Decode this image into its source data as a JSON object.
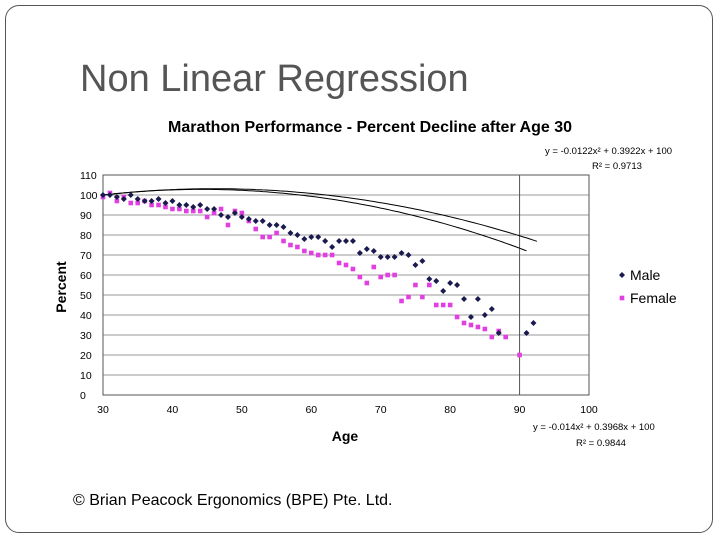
{
  "slide": {
    "title": "Non Linear Regression",
    "copyright": "© Brian Peacock Ergonomics (BPE) Pte. Ltd."
  },
  "chart_data": {
    "type": "scatter",
    "title": "Marathon Performance - Percent Decline after Age 30",
    "xlabel": "Age",
    "ylabel": "Percent",
    "xlim": [
      30,
      100
    ],
    "ylim": [
      0,
      110
    ],
    "x_ticks": [
      30,
      40,
      50,
      60,
      70,
      80,
      90,
      100
    ],
    "y_ticks": [
      0,
      10,
      20,
      30,
      40,
      50,
      60,
      70,
      80,
      90,
      100,
      110
    ],
    "grid": "horizontal",
    "legend_position": "right",
    "series": [
      {
        "name": "Male",
        "color": "#1a1a4e",
        "marker": "diamond",
        "trendline": {
          "equation": "y = -0.0122x² + 0.3922x + 100",
          "r2": "R² = 0.9713",
          "a": -0.0122,
          "b": 0.3922,
          "c": 100
        },
        "points": [
          [
            30,
            100
          ],
          [
            31,
            100
          ],
          [
            32,
            99
          ],
          [
            33,
            98
          ],
          [
            34,
            100
          ],
          [
            35,
            98
          ],
          [
            36,
            97
          ],
          [
            37,
            97
          ],
          [
            38,
            98
          ],
          [
            39,
            96
          ],
          [
            40,
            97
          ],
          [
            41,
            95
          ],
          [
            42,
            95
          ],
          [
            43,
            94
          ],
          [
            44,
            95
          ],
          [
            45,
            93
          ],
          [
            46,
            93
          ],
          [
            47,
            90
          ],
          [
            48,
            89
          ],
          [
            49,
            91
          ],
          [
            50,
            89
          ],
          [
            51,
            88
          ],
          [
            52,
            87
          ],
          [
            53,
            87
          ],
          [
            54,
            85
          ],
          [
            55,
            85
          ],
          [
            56,
            84
          ],
          [
            57,
            81
          ],
          [
            58,
            80
          ],
          [
            59,
            78
          ],
          [
            60,
            79
          ],
          [
            61,
            79
          ],
          [
            62,
            77
          ],
          [
            63,
            74
          ],
          [
            64,
            77
          ],
          [
            65,
            77
          ],
          [
            66,
            77
          ],
          [
            67,
            71
          ],
          [
            68,
            73
          ],
          [
            69,
            72
          ],
          [
            70,
            69
          ],
          [
            71,
            69
          ],
          [
            72,
            69
          ],
          [
            73,
            71
          ],
          [
            74,
            70
          ],
          [
            75,
            65
          ],
          [
            76,
            67
          ],
          [
            77,
            58
          ],
          [
            78,
            57
          ],
          [
            79,
            52
          ],
          [
            80,
            56
          ],
          [
            81,
            55
          ],
          [
            82,
            48
          ],
          [
            83,
            39
          ],
          [
            84,
            48
          ],
          [
            85,
            40
          ],
          [
            86,
            43
          ],
          [
            87,
            31
          ],
          [
            91,
            31
          ],
          [
            92,
            36
          ]
        ]
      },
      {
        "name": "Female",
        "color": "#e040e0",
        "marker": "square",
        "trendline": {
          "equation": "y = -0.014x² + 0.3968x + 100",
          "r2": "R² = 0.9844",
          "a": -0.014,
          "b": 0.3968,
          "c": 100
        },
        "points": [
          [
            30,
            99
          ],
          [
            31,
            101
          ],
          [
            32,
            97
          ],
          [
            33,
            99
          ],
          [
            34,
            96
          ],
          [
            35,
            96
          ],
          [
            36,
            97
          ],
          [
            37,
            95
          ],
          [
            38,
            95
          ],
          [
            39,
            94
          ],
          [
            40,
            93
          ],
          [
            41,
            93
          ],
          [
            42,
            92
          ],
          [
            43,
            92
          ],
          [
            44,
            92
          ],
          [
            45,
            89
          ],
          [
            46,
            91
          ],
          [
            47,
            93
          ],
          [
            48,
            85
          ],
          [
            49,
            92
          ],
          [
            50,
            91
          ],
          [
            51,
            87
          ],
          [
            52,
            83
          ],
          [
            53,
            79
          ],
          [
            54,
            79
          ],
          [
            55,
            81
          ],
          [
            56,
            77
          ],
          [
            57,
            75
          ],
          [
            58,
            74
          ],
          [
            59,
            72
          ],
          [
            60,
            71
          ],
          [
            61,
            70
          ],
          [
            62,
            70
          ],
          [
            63,
            70
          ],
          [
            64,
            66
          ],
          [
            65,
            65
          ],
          [
            66,
            63
          ],
          [
            67,
            59
          ],
          [
            68,
            56
          ],
          [
            69,
            64
          ],
          [
            70,
            59
          ],
          [
            71,
            60
          ],
          [
            72,
            60
          ],
          [
            73,
            47
          ],
          [
            74,
            49
          ],
          [
            75,
            55
          ],
          [
            76,
            49
          ],
          [
            77,
            55
          ],
          [
            78,
            45
          ],
          [
            79,
            45
          ],
          [
            80,
            45
          ],
          [
            81,
            39
          ],
          [
            82,
            36
          ],
          [
            83,
            35
          ],
          [
            84,
            34
          ],
          [
            85,
            33
          ],
          [
            86,
            29
          ],
          [
            87,
            32
          ],
          [
            88,
            29
          ],
          [
            90,
            20
          ]
        ]
      }
    ]
  }
}
